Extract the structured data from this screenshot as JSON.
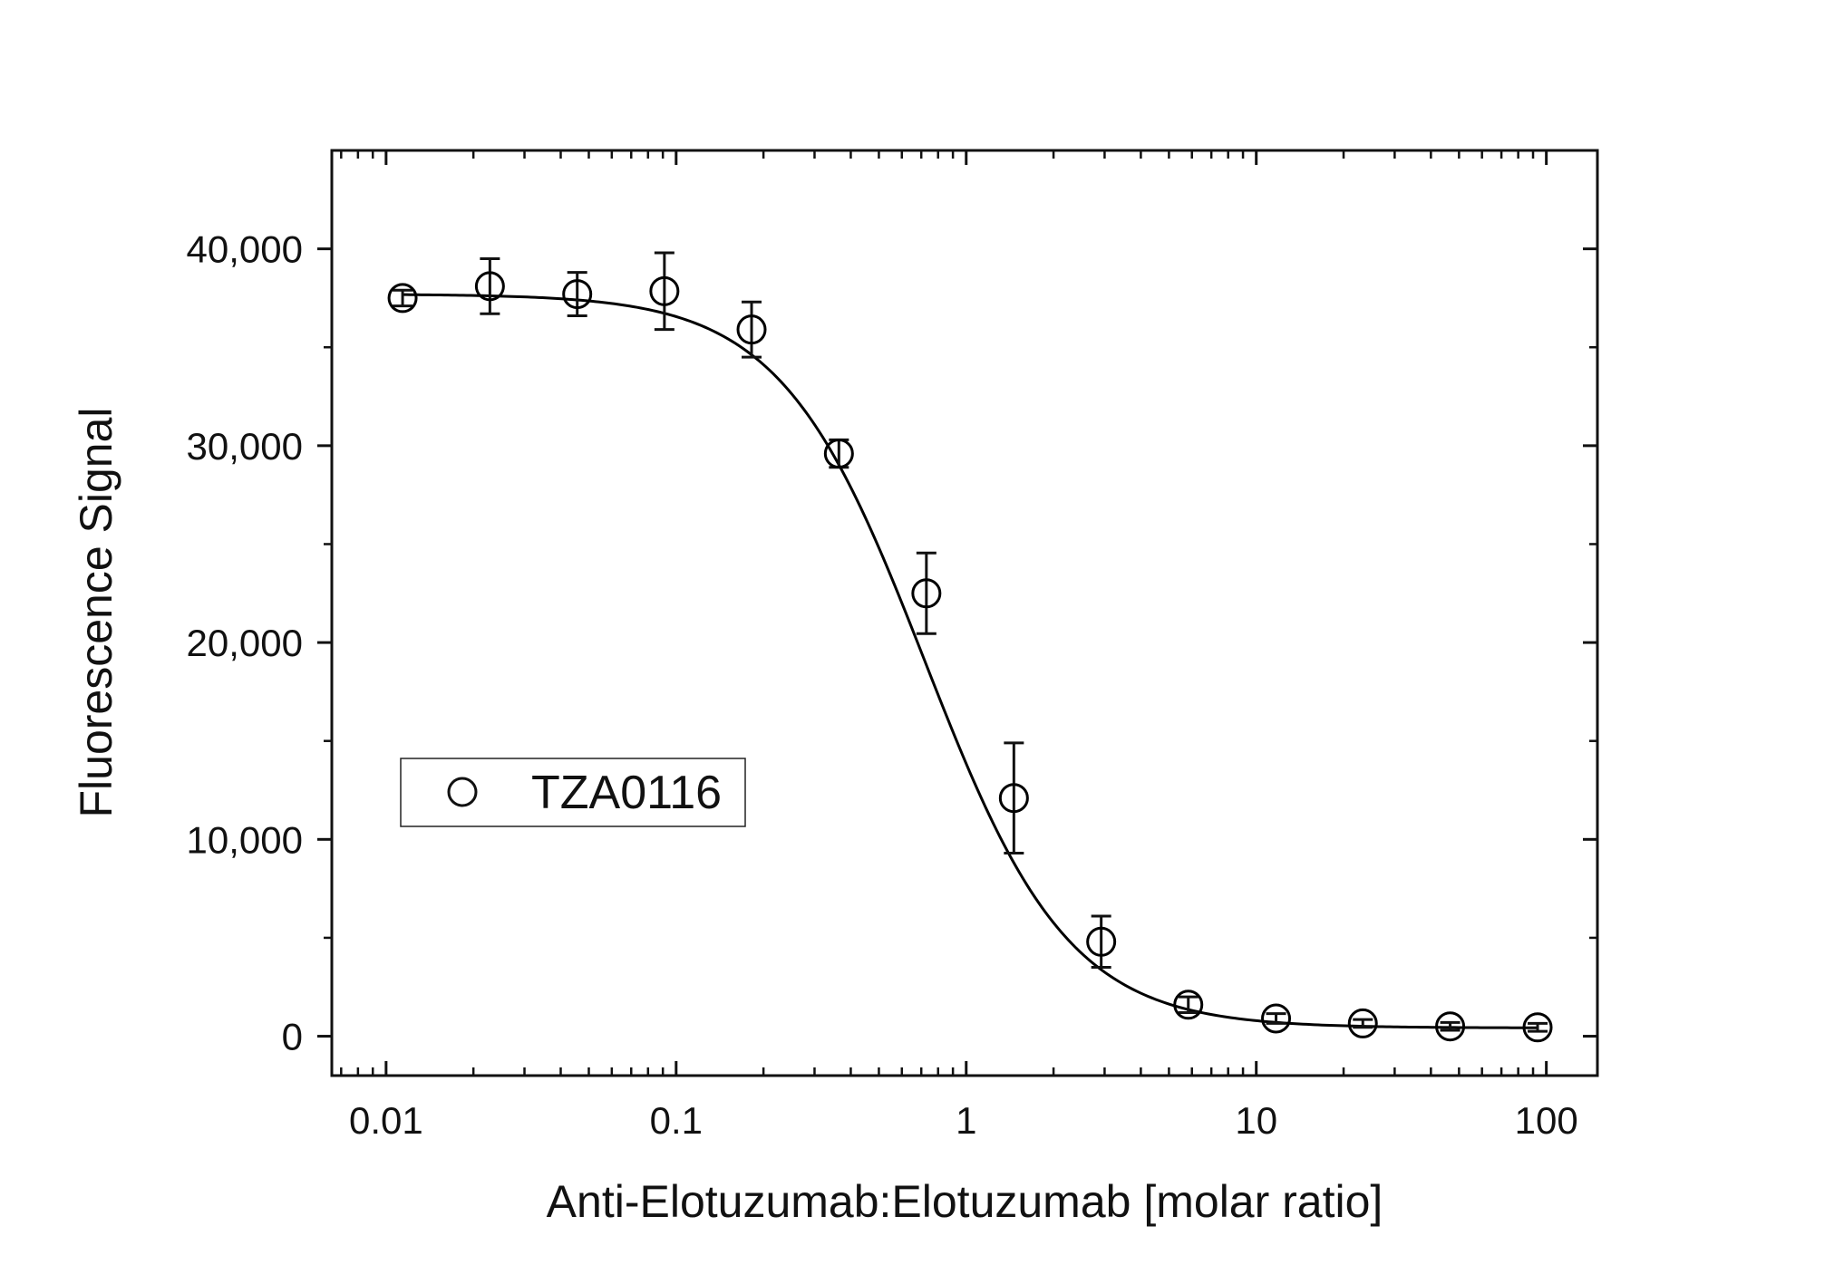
{
  "chart_data": {
    "type": "scatter",
    "xlabel": "Anti-Elotuzumab:Elotuzumab [molar ratio]",
    "ylabel": "Fluorescence Signal",
    "x_scale": "log",
    "xlim": [
      0.0065,
      150
    ],
    "ylim": [
      -2000,
      45000
    ],
    "x_ticks": [
      0.01,
      0.1,
      1,
      10,
      100
    ],
    "x_tick_labels": [
      "0.01",
      "0.1",
      "1",
      "10",
      "100"
    ],
    "y_ticks": [
      0,
      10000,
      20000,
      30000,
      40000
    ],
    "y_tick_labels": [
      "0",
      "10,000",
      "20,000",
      "30,000",
      "40,000"
    ],
    "grid": false,
    "legend_position": "center-left",
    "series": [
      {
        "name": "TZA0116",
        "marker": "open-circle",
        "color": "#000000",
        "points": [
          {
            "x": 0.0114,
            "y": 37500,
            "err": 400
          },
          {
            "x": 0.0228,
            "y": 38100,
            "err": 1400
          },
          {
            "x": 0.0456,
            "y": 37700,
            "err": 1100
          },
          {
            "x": 0.0911,
            "y": 37850,
            "err": 1950
          },
          {
            "x": 0.182,
            "y": 35900,
            "err": 1400
          },
          {
            "x": 0.364,
            "y": 29600,
            "err": 700
          },
          {
            "x": 0.729,
            "y": 22500,
            "err": 2050
          },
          {
            "x": 1.46,
            "y": 12100,
            "err": 2800
          },
          {
            "x": 2.92,
            "y": 4800,
            "err": 1300
          },
          {
            "x": 5.83,
            "y": 1600,
            "err": 400
          },
          {
            "x": 11.7,
            "y": 900,
            "err": 250
          },
          {
            "x": 23.3,
            "y": 650,
            "err": 200
          },
          {
            "x": 46.6,
            "y": 500,
            "err": 200
          },
          {
            "x": 93.3,
            "y": 450,
            "err": 200
          }
        ]
      }
    ],
    "fit": {
      "model": "4PL",
      "top": 37700,
      "bottom": 420,
      "ec50": 0.72,
      "hill": 1.75,
      "color": "#000000"
    }
  }
}
